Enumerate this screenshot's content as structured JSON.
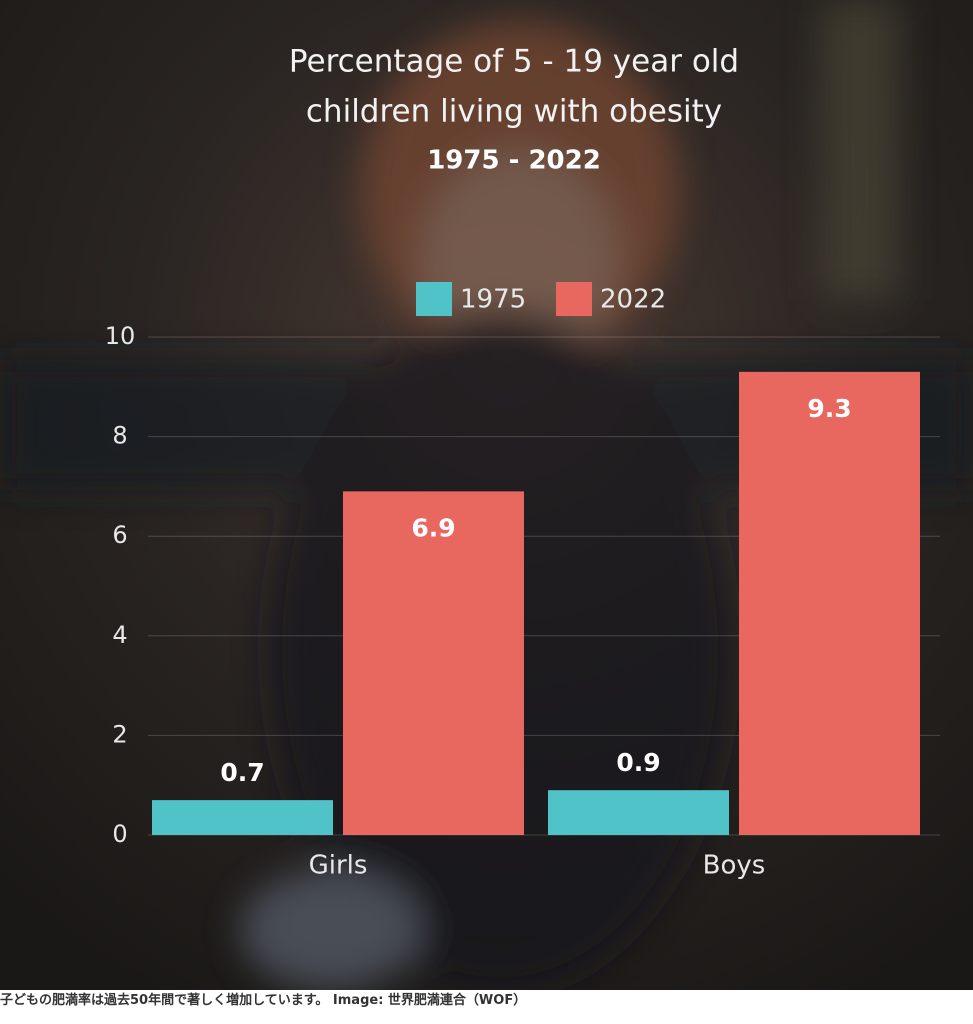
{
  "chart_data": {
    "type": "bar",
    "title": [
      "Percentage of 5 - 19 year old",
      "children living with obesity"
    ],
    "subtitle": "1975 - 2022",
    "categories": [
      "Girls",
      "Boys"
    ],
    "series": [
      {
        "name": "1975",
        "color": "#4fc3c7",
        "values": [
          0.7,
          0.9
        ]
      },
      {
        "name": "2022",
        "color": "#e8675f",
        "values": [
          6.9,
          9.3
        ]
      }
    ],
    "ylim": [
      0,
      10
    ],
    "yticks": [
      0,
      2,
      4,
      6,
      8,
      10
    ],
    "grid": true
  },
  "caption": "子どもの肥満率は過去50年間で著しく増加しています。 Image: 世界肥満連合（WOF）"
}
